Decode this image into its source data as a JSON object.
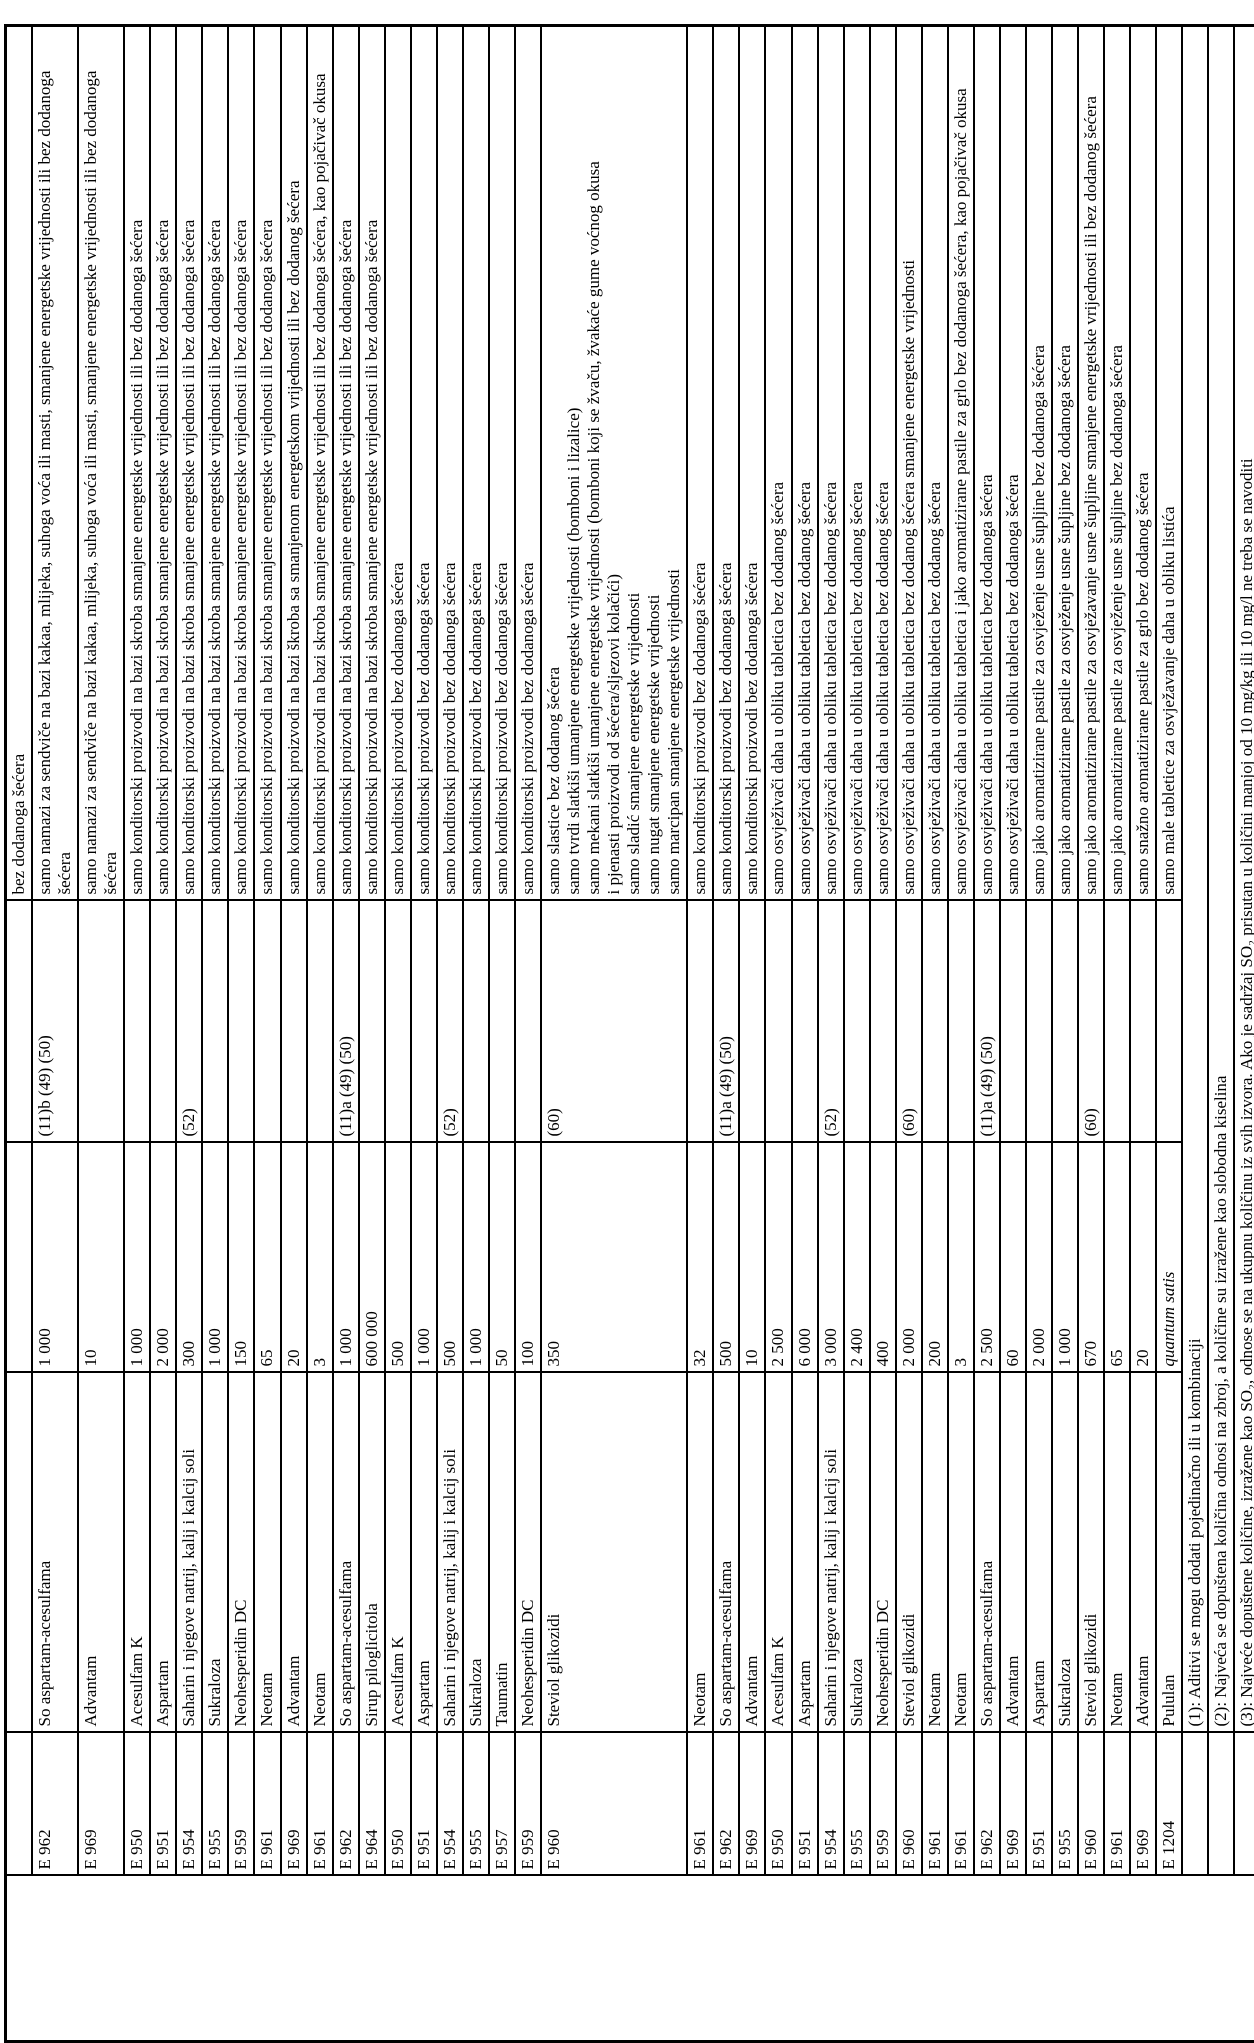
{
  "document": {
    "type_note": "scanned regulation table, rotated 90deg counter-clockwise",
    "background": "#ffffff",
    "ink_color": "#000000"
  },
  "table": {
    "columns": [
      "category",
      "e_number",
      "name",
      "max_amount",
      "footnote_refs",
      "restrictions"
    ],
    "category_cell": "",
    "rows": [
      {
        "e": "",
        "name": "",
        "amount": "",
        "notes": "",
        "desc": [
          "bez dodanoga šećera"
        ]
      },
      {
        "e": "E 962",
        "name": "So aspartam-acesulfama",
        "amount": "1 000",
        "notes": "(11)b (49) (50)",
        "desc": [
          "samo namazi za sendviče na bazi kakaa, mlijeka, suhoga voća ili masti, smanjene energetske vrijednosti ili bez dodanoga šećera"
        ]
      },
      {
        "e": "E 969",
        "name": "Advantam",
        "amount": "10",
        "notes": "",
        "desc": [
          "samo namazi za sendviče na bazi kakaa, mlijeka, suhoga voća ili masti, smanjene energetske vrijednosti ili bez dodanoga šećera"
        ]
      },
      {
        "e": "E 950",
        "name": "Acesulfam K",
        "amount": "1 000",
        "notes": "",
        "desc": [
          "samo konditorski proizvodi na bazi skroba smanjene energetske vrijednosti ili bez dodanoga šećera"
        ]
      },
      {
        "e": "E 951",
        "name": "Aspartam",
        "amount": "2 000",
        "notes": "",
        "desc": [
          "samo konditorski proizvodi na bazi skroba smanjene energetske vrijednosti ili bez dodanoga šećera"
        ]
      },
      {
        "e": "E 954",
        "name": "Saharin i njegove natrij, kalij i kalcij soli",
        "amount": "300",
        "notes": "(52)",
        "desc": [
          "samo konditorski proizvodi na bazi skroba smanjene energetske vrijednosti ili bez dodanoga šećera"
        ]
      },
      {
        "e": "E 955",
        "name": "Sukraloza",
        "amount": "1 000",
        "notes": "",
        "desc": [
          "samo konditorski proizvodi na bazi skroba smanjene energetske vrijednosti ili bez dodanoga šećera"
        ]
      },
      {
        "e": "E 959",
        "name": "Neohesperidin DC",
        "amount": "150",
        "notes": "",
        "desc": [
          "samo konditorski proizvodi na bazi skroba smanjene energetske vrijednosti ili bez dodanoga šećera"
        ]
      },
      {
        "e": "E 961",
        "name": "Neotam",
        "amount": "65",
        "notes": "",
        "desc": [
          "samo konditorski proizvodi na bazi skroba smanjene energetske vrijednosti ili bez dodanoga šećera"
        ]
      },
      {
        "e": "E 969",
        "name": "Advantam",
        "amount": "20",
        "notes": "",
        "desc": [
          "samo konditorski proizvodi na bazi škroba sa smanjenom energetskom vrijednosti ili bez dodanog šećera"
        ]
      },
      {
        "e": "E 961",
        "name": "Neotam",
        "amount": "3",
        "notes": "",
        "desc": [
          "samo konditorski proizvodi na bazi skroba smanjene energetske vrijednosti ili bez dodanoga šećera, kao pojačivač okusa"
        ]
      },
      {
        "e": "E 962",
        "name": "So aspartam-acesulfama",
        "amount": "1 000",
        "notes": "(11)a (49) (50)",
        "desc": [
          "samo konditorski proizvodi na bazi skroba smanjene energetske vrijednosti ili bez dodanoga šećera"
        ]
      },
      {
        "e": "E 964",
        "name": "Sirup piloglicitola",
        "amount": "600 000",
        "notes": "",
        "desc": [
          "samo konditorski proizvodi na bazi skroba smanjene energetske vrijednosti ili bez dodanoga šećera"
        ]
      },
      {
        "e": "E 950",
        "name": "Acesulfam K",
        "amount": "500",
        "notes": "",
        "desc": [
          "samo konditorski proizvodi bez dodanoga šećera"
        ]
      },
      {
        "e": "E 951",
        "name": "Aspartam",
        "amount": "1 000",
        "notes": "",
        "desc": [
          "samo konditorski proizvodi bez dodanoga šećera"
        ]
      },
      {
        "e": "E 954",
        "name": "Saharin i njegove natrij, kalij i kalcij soli",
        "amount": "500",
        "notes": "(52)",
        "desc": [
          "samo konditorski proizvodi bez dodanoga šećera"
        ]
      },
      {
        "e": "E 955",
        "name": "Sukraloza",
        "amount": "1 000",
        "notes": "",
        "desc": [
          "samo konditorski proizvodi bez dodanoga šećera"
        ]
      },
      {
        "e": "E 957",
        "name": "Taumatin",
        "amount": "50",
        "notes": "",
        "desc": [
          "samo konditorski proizvodi bez dodanoga šećera"
        ]
      },
      {
        "e": "E 959",
        "name": "Neohesperidin DC",
        "amount": "100",
        "notes": "",
        "desc": [
          "samo konditorski proizvodi bez dodanoga šećera"
        ]
      },
      {
        "e": "E 960",
        "name": "Steviol glikozidi",
        "amount": "350",
        "notes": "(60)",
        "desc": [
          "samo slastice bez dodanog šećera",
          "samo tvrdi slatkiši umanjene energetske vrijednosti (bomboni i lizalice)",
          "samo mekani slatkiši umanjene energetske vrijednosti (bomboni koji se žvaču, žvakaće gume voćnog okusa",
          "i pjenasti proizvodi od šećera/sljezovi kolačići)",
          "samo sladić smanjene energetske vrijednosti",
          "samo nugat smanjene energetske vrijednosti",
          "samo marcipan smanjene energetske vrijednosti"
        ]
      },
      {
        "e": "E 961",
        "name": "Neotam",
        "amount": "32",
        "notes": "",
        "desc": [
          "samo konditorski proizvodi bez dodanoga šećera"
        ]
      },
      {
        "e": "E 962",
        "name": "So aspartam-acesulfama",
        "amount": "500",
        "notes": "(11)a (49) (50)",
        "desc": [
          "samo konditorski proizvodi bez dodanoga šećera"
        ]
      },
      {
        "e": "E 969",
        "name": "Advantam",
        "amount": "10",
        "notes": "",
        "desc": [
          "samo konditorski proizvodi bez dodanoga šećera"
        ]
      },
      {
        "e": "E 950",
        "name": "Acesulfam K",
        "amount": "2 500",
        "notes": "",
        "desc": [
          "samo osvježivači daha u obliku tabletica bez dodanog šećera"
        ]
      },
      {
        "e": "E 951",
        "name": "Aspartam",
        "amount": "6 000",
        "notes": "",
        "desc": [
          "samo osvježivači daha u obliku tabletica bez dodanog šećera"
        ]
      },
      {
        "e": "E 954",
        "name": "Saharin i njegove natrij, kalij i kalcij soli",
        "amount": "3 000",
        "notes": "(52)",
        "desc": [
          "samo osvježivači daha u obliku tabletica bez dodanog šećera"
        ]
      },
      {
        "e": "E 955",
        "name": "Sukraloza",
        "amount": "2 400",
        "notes": "",
        "desc": [
          "samo osvježivači daha u obliku tabletica bez dodanog šećera"
        ]
      },
      {
        "e": "E 959",
        "name": "Neohesperidin DC",
        "amount": "400",
        "notes": "",
        "desc": [
          "samo osvježivači daha u obliku tabletica bez dodanog šećera"
        ]
      },
      {
        "e": "E 960",
        "name": "Steviol glikozidi",
        "amount": "2 000",
        "notes": "(60)",
        "desc": [
          "samo osvježivači daha u obliku tabletica bez dodanog šećera smanjene energetske vrijednosti"
        ]
      },
      {
        "e": "E 961",
        "name": "Neotam",
        "amount": "200",
        "notes": "",
        "desc": [
          "samo osvježivači daha u obliku tabletica bez dodanog šećera"
        ]
      },
      {
        "e": "E 961",
        "name": "Neotam",
        "amount": "3",
        "notes": "",
        "desc": [
          "samo osvježivači daha u obliku tabletica i jako aromatizirane pastile za grlo bez dodanoga šećera, kao pojačivač okusa"
        ]
      },
      {
        "e": "E 962",
        "name": "So aspartam-acesulfama",
        "amount": "2 500",
        "notes": "(11)a (49) (50)",
        "desc": [
          "samo osvježivači daha u obliku tabletica bez dodanoga šećera"
        ]
      },
      {
        "e": "E 969",
        "name": "Advantam",
        "amount": "60",
        "notes": "",
        "desc": [
          "samo osvježivači daha u obliku tabletica bez dodanoga šećera"
        ]
      },
      {
        "e": "E 951",
        "name": "Aspartam",
        "amount": "2 000",
        "notes": "",
        "desc": [
          "samo jako aromatizirane pastile za osvježenje usne šupljine bez dodanoga šećera"
        ]
      },
      {
        "e": "E 955",
        "name": "Sukraloza",
        "amount": "1 000",
        "notes": "",
        "desc": [
          "samo jako aromatizirane pastile za osvježenje usne šupljine bez dodanoga šećera"
        ]
      },
      {
        "e": "E 960",
        "name": "Steviol glikozidi",
        "amount": "670",
        "notes": "(60)",
        "desc": [
          "samo jako aromatizirane pastile za osvježavanje usne šupljine smanjene energetske vrijednosti ili bez dodanog šećera"
        ]
      },
      {
        "e": "E 961",
        "name": "Neotam",
        "amount": "65",
        "notes": "",
        "desc": [
          "samo jako aromatizirane pastile za osvježenje usne šupljine bez dodanoga šećera"
        ]
      },
      {
        "e": "E 969",
        "name": "Advantam",
        "amount": "20",
        "notes": "",
        "desc": [
          "samo snažno aromatizirane pastile za grlo bez dodanog šećera"
        ]
      },
      {
        "e": "E 1204",
        "name": "Pululan",
        "amount": "quantum satis",
        "amount_italic": true,
        "notes": "",
        "desc": [
          "samo male tabletice za osvježavanje daha u obliku listića"
        ]
      }
    ],
    "footnotes": [
      "(1): Aditivi se mogu dodati pojedinačno ili u kombinaciji",
      "(2): Najveća se dopuštena količina odnosi na zbroj, a količine su izražene kao slobodna kiselina",
      "(3): Najveće dopuštene količine, izražene kao SO₂, odnose se na ukupnu količinu iz svih izvora. Ako je sadržaj SO₂ prisutan u količini manjoj od 10 mg/kg ili 10 mg/l ne treba se navoditi"
    ]
  }
}
